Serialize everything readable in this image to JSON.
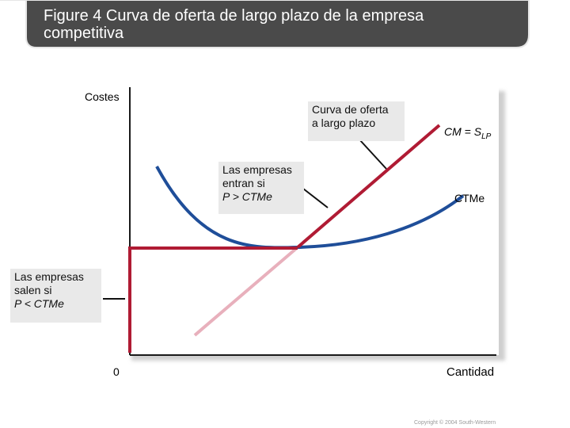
{
  "title": "Figure 4 Curva de oferta de largo plazo de la empresa\ncompetitiva",
  "colors": {
    "title_bar": "#4a4a4a",
    "title_bar_edge": "#e6e6e6",
    "ctme_curve": "#1f4e99",
    "supply_curve": "#b01b34",
    "marginal_cost_lower": "#e8b0bc",
    "annotation_bg": "#e9e9e9"
  },
  "chart_data": {
    "type": "line",
    "ylabel": "Costes",
    "xlabel": "Cantidad",
    "origin_label": "0",
    "curves": [
      {
        "id": "ctme",
        "label": "CTMe"
      },
      {
        "id": "cm",
        "label_main": "CM = S",
        "label_sub": "LP"
      }
    ],
    "annotations": [
      {
        "id": "supply",
        "lines": [
          "Curva de oferta",
          "a largo plazo"
        ]
      },
      {
        "id": "enter",
        "lines": [
          "Las empresas",
          "entran si",
          "P > CTMe"
        ]
      },
      {
        "id": "exit",
        "lines": [
          "Las empresas",
          "salen si",
          "P < CTMe"
        ]
      }
    ]
  },
  "footer": {
    "copyright": "Copyright © 2004 South-Western"
  }
}
